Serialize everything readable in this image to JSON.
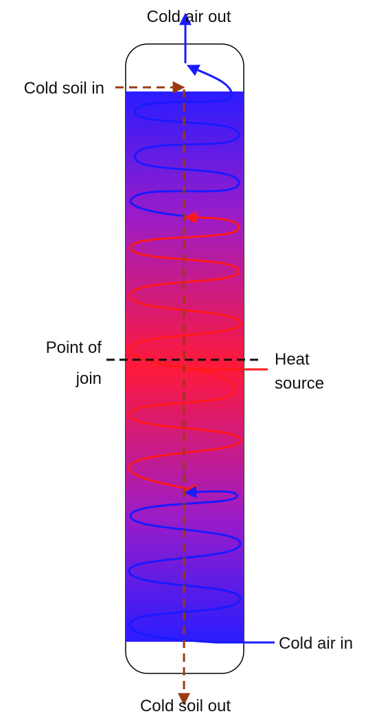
{
  "labels": {
    "cold_air_out": "Cold air out",
    "cold_soil_in": "Cold soil in",
    "point_of_join_line1": "Point of",
    "point_of_join_line2": "join",
    "heat_source_line1": "Heat",
    "heat_source_line2": "source",
    "cold_air_in": "Cold air in",
    "cold_soil_out": "Cold soil out"
  },
  "colors": {
    "cold": "#2b1cff",
    "hot": "#ff1a3a",
    "soil": "#9a3a10",
    "air_line": "#1a1aff",
    "heat_line": "#ff1a1a",
    "vessel_outline": "#000000"
  },
  "icons": {
    "soil_flow": "dashed-arrow",
    "air_flow": "spiral-arrow",
    "join_marker": "dashed-line"
  }
}
